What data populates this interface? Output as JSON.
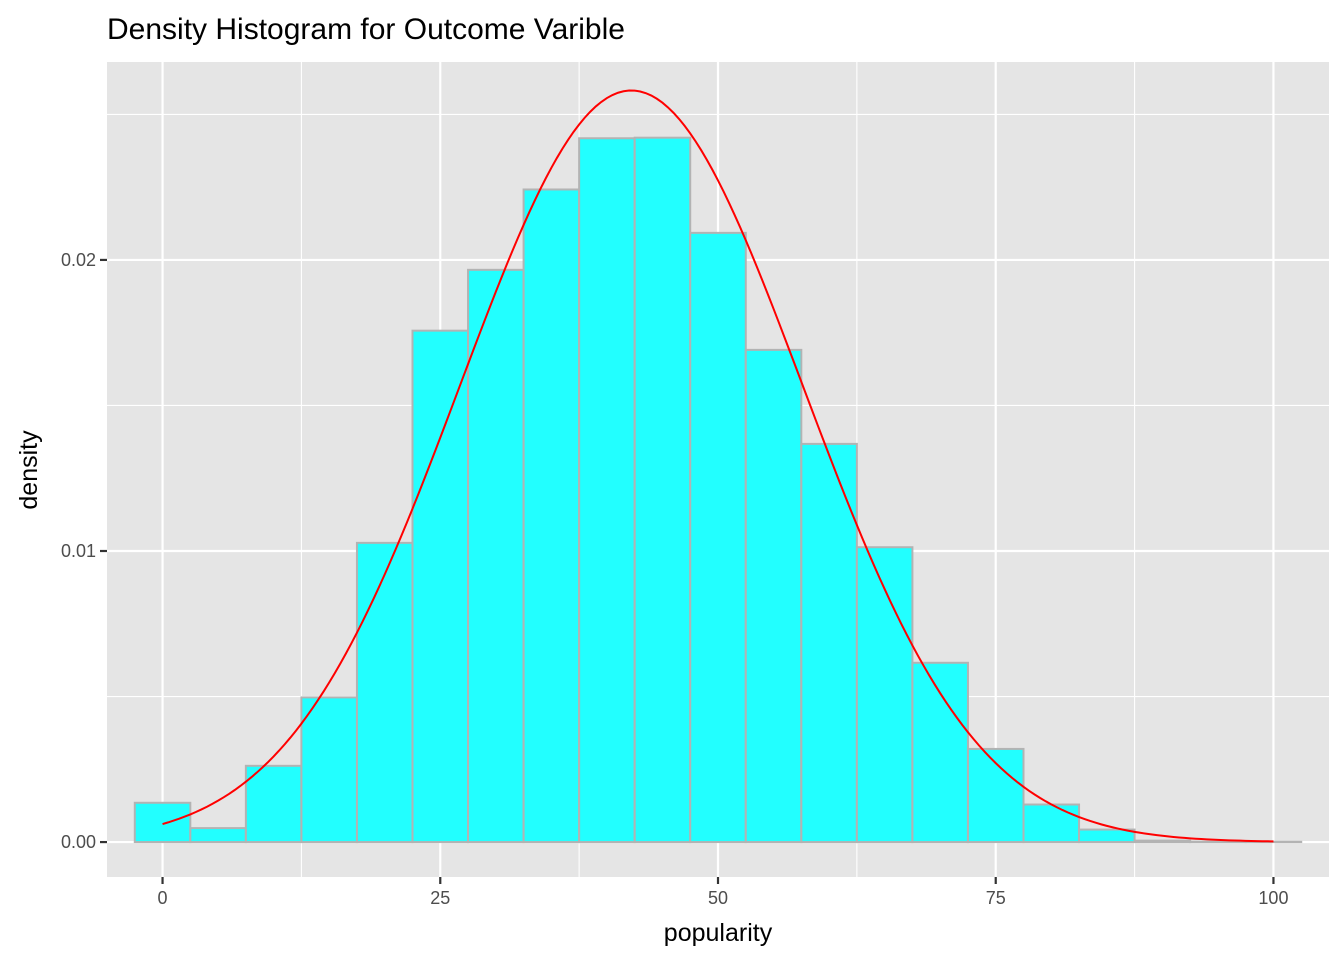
{
  "chart_data": {
    "type": "bar",
    "title": "Density Histogram for Outcome Varible",
    "xlabel": "popularity",
    "ylabel": "density",
    "xlim": [
      -5,
      105
    ],
    "ylim": [
      -0.0012,
      0.0268
    ],
    "x_ticks": [
      0,
      25,
      50,
      75,
      100
    ],
    "x_tick_labels": [
      "0",
      "25",
      "50",
      "75",
      "100"
    ],
    "y_ticks": [
      0.0,
      0.01,
      0.02
    ],
    "y_tick_labels": [
      "0.00",
      "0.01",
      "0.02"
    ],
    "y_minor_ticks": [
      0.005,
      0.015,
      0.025
    ],
    "x_minor_ticks": [
      12.5,
      37.5,
      62.5,
      87.5
    ],
    "grid": true,
    "bins": {
      "centers": [
        0,
        5,
        10,
        15,
        20,
        25,
        30,
        35,
        40,
        45,
        50,
        55,
        60,
        65,
        70,
        75,
        80,
        85,
        90,
        95,
        100
      ],
      "width": 5,
      "values": [
        0.00135,
        0.00048,
        0.00262,
        0.00497,
        0.01028,
        0.01757,
        0.01966,
        0.02242,
        0.02418,
        0.0242,
        0.02093,
        0.01691,
        0.01368,
        0.01013,
        0.00616,
        0.0032,
        0.00129,
        0.00043,
        5e-05,
        1e-05,
        1e-05
      ],
      "fill_color": "#22ffff",
      "edge_color": "#b3b3b3"
    },
    "curve": {
      "type": "normal-density",
      "mean": 42.2,
      "sd": 15.45,
      "x_range": [
        0,
        100
      ],
      "color": "#ff0000"
    },
    "panel_background": "#e5e5e5",
    "grid_color": "#ffffff"
  }
}
